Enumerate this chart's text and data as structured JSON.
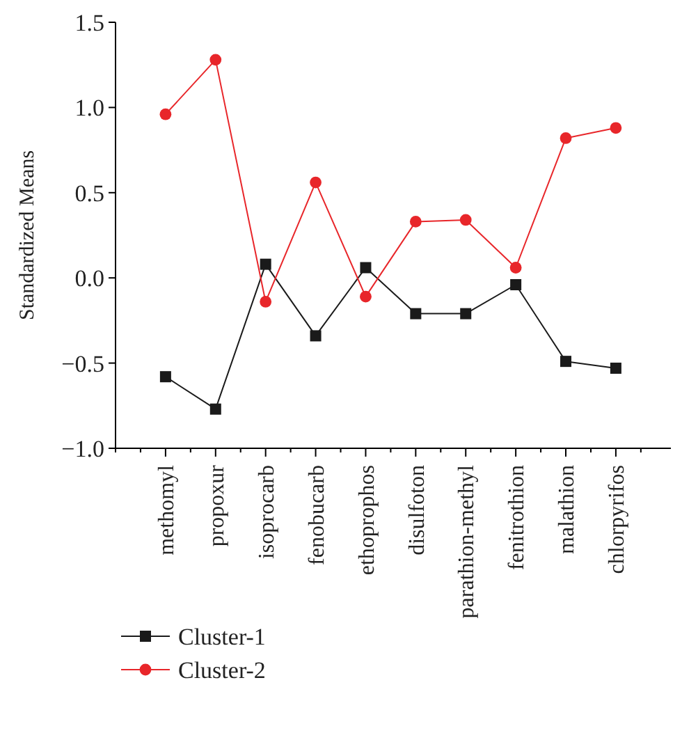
{
  "chart_data": {
    "type": "line",
    "ylabel": "Standardized Means",
    "categories": [
      "methomyl",
      "propoxur",
      "isoprocarb",
      "fenobucarb",
      "ethoprophos",
      "disulfoton",
      "parathion-methyl",
      "fenitrothion",
      "malathion",
      "chlorpyrifos"
    ],
    "series": [
      {
        "name": "Cluster-1",
        "color": "#1a1a1a",
        "marker": "square",
        "values": [
          -0.58,
          -0.77,
          0.08,
          -0.34,
          0.06,
          -0.21,
          -0.21,
          -0.04,
          -0.49,
          -0.53
        ]
      },
      {
        "name": "Cluster-2",
        "color": "#e8262a",
        "marker": "circle",
        "values": [
          0.96,
          1.28,
          -0.14,
          0.56,
          -0.11,
          0.33,
          0.34,
          0.06,
          0.82,
          0.88
        ]
      }
    ],
    "ylim": [
      -1.0,
      1.5
    ],
    "yticks": [
      {
        "value": -1,
        "label": "−1.0"
      },
      {
        "value": -0.5,
        "label": "−0.5"
      },
      {
        "value": 0,
        "label": "0.0"
      },
      {
        "value": 0.5,
        "label": "0.5"
      },
      {
        "value": 1,
        "label": "1.0"
      },
      {
        "value": 1.5,
        "label": "1.5"
      }
    ],
    "legend": "bottom",
    "grid": false,
    "line_style": "solid"
  }
}
